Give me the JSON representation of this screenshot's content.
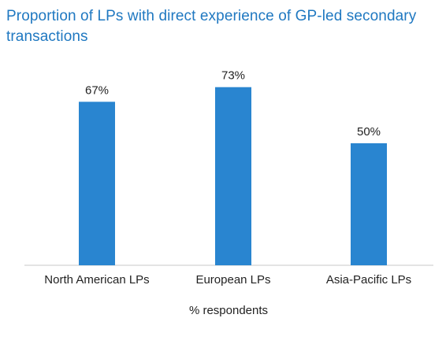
{
  "chart_data": {
    "type": "bar",
    "title": "Proportion of LPs with direct experience of GP-led secondary transactions",
    "categories": [
      "North American LPs",
      "European LPs",
      "Asia-Pacific LPs"
    ],
    "values": [
      67,
      73,
      50
    ],
    "value_labels": [
      "67%",
      "73%",
      "50%"
    ],
    "xlabel": "% respondents",
    "ylabel": "",
    "ylim": [
      0,
      100
    ],
    "grid": false,
    "bar_color": "#2985d0",
    "title_color": "#1f78c1"
  }
}
